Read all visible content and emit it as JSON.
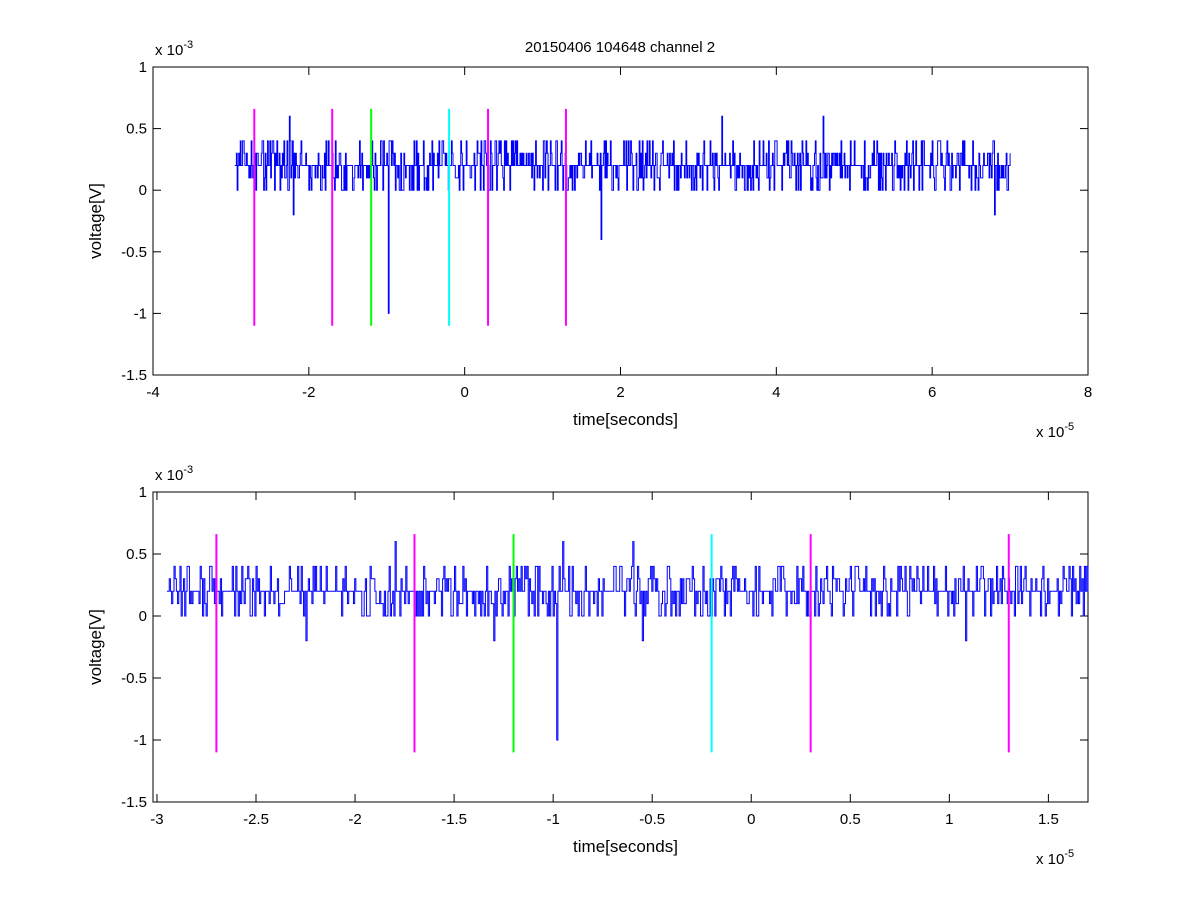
{
  "title": "20150406 104648 channel 2",
  "chart_data": [
    {
      "type": "line",
      "title": "20150406 104648 channel 2",
      "xlabel": "time[seconds]",
      "ylabel": "voltage[V]",
      "x_exponent_label": "x 10",
      "x_exponent": "-5",
      "y_exponent_label": "x 10",
      "y_exponent": "-3",
      "xlim": [
        -4e-05,
        8e-05
      ],
      "ylim": [
        -0.0015,
        0.001
      ],
      "xticks": [
        -4e-05,
        -2e-05,
        0,
        2e-05,
        4e-05,
        6e-05,
        8e-05
      ],
      "xtick_labels": [
        "-4",
        "-2",
        "0",
        "2",
        "4",
        "6",
        "8"
      ],
      "yticks": [
        -0.0015,
        -0.001,
        -0.0005,
        0,
        0.0005,
        0.001
      ],
      "ytick_labels": [
        "-1.5",
        "-1",
        "-0.5",
        "0",
        "0.5",
        "1"
      ],
      "grid": false,
      "signal": {
        "color": "#0000ff",
        "x_start": -2.95e-05,
        "x_end": 7e-05,
        "baseline": 0.0002,
        "levels": [
          0,
          0.0001,
          0.0002,
          0.0003,
          0.0004
        ],
        "spikes": [
          {
            "x": -9.8e-06,
            "y": -0.001
          },
          {
            "x": 1.75e-05,
            "y": -0.0004
          },
          {
            "x": -2.2e-05,
            "y": -0.0002
          },
          {
            "x": 6.8e-05,
            "y": -0.0002
          },
          {
            "x": 3.3e-05,
            "y": 0.0006
          },
          {
            "x": -2.25e-05,
            "y": 0.0006
          },
          {
            "x": 4.6e-05,
            "y": 0.0006
          }
        ]
      },
      "markers": [
        {
          "x": -2.7e-05,
          "color": "#ff00ff",
          "y_min": -0.0011,
          "y_max": 0.00066
        },
        {
          "x": -1.7e-05,
          "color": "#ff00ff",
          "y_min": -0.0011,
          "y_max": 0.00066
        },
        {
          "x": -1.2e-05,
          "color": "#00ff00",
          "y_min": -0.0011,
          "y_max": 0.00066
        },
        {
          "x": -2e-06,
          "color": "#00ffff",
          "y_min": -0.0011,
          "y_max": 0.00066
        },
        {
          "x": 3e-06,
          "color": "#ff00ff",
          "y_min": -0.0011,
          "y_max": 0.00066
        },
        {
          "x": 1.3e-05,
          "color": "#ff00ff",
          "y_min": -0.0011,
          "y_max": 0.00066
        }
      ]
    },
    {
      "type": "line",
      "title": "",
      "xlabel": "time[seconds]",
      "ylabel": "voltage[V]",
      "x_exponent_label": "x 10",
      "x_exponent": "-5",
      "y_exponent_label": "x 10",
      "y_exponent": "-3",
      "xlim": [
        -3.02e-05,
        1.7e-05
      ],
      "ylim": [
        -0.0015,
        0.001
      ],
      "xticks": [
        -3e-05,
        -2.5e-05,
        -2e-05,
        -1.5e-05,
        -1e-05,
        -5e-06,
        0,
        5e-06,
        1e-05,
        1.5e-05
      ],
      "xtick_labels": [
        "-3",
        "-2.5",
        "-2",
        "-1.5",
        "-1",
        "-0.5",
        "0",
        "0.5",
        "1",
        "1.5"
      ],
      "yticks": [
        -0.0015,
        -0.001,
        -0.0005,
        0,
        0.0005,
        0.001
      ],
      "ytick_labels": [
        "-1.5",
        "-1",
        "-0.5",
        "0",
        "0.5",
        "1"
      ],
      "grid": false,
      "signal": {
        "color": "#0000ff",
        "x_start": -2.95e-05,
        "x_end": 1.7e-05,
        "baseline": 0.0002,
        "levels": [
          0,
          0.0001,
          0.0002,
          0.0003,
          0.0004
        ],
        "spikes": [
          {
            "x": -9.8e-06,
            "y": -0.001
          },
          {
            "x": -2.25e-05,
            "y": 0.0006
          },
          {
            "x": -2.25e-05,
            "y": -0.0002
          },
          {
            "x": -1.8e-05,
            "y": 0.0006
          },
          {
            "x": -9.5e-06,
            "y": 0.0006
          },
          {
            "x": -6e-06,
            "y": 0.0006
          },
          {
            "x": 1.08e-05,
            "y": -0.0002
          },
          {
            "x": -1.3e-05,
            "y": -0.0002
          },
          {
            "x": -5.5e-06,
            "y": -0.0002
          }
        ]
      },
      "markers": [
        {
          "x": -2.7e-05,
          "color": "#ff00ff",
          "y_min": -0.0011,
          "y_max": 0.00066
        },
        {
          "x": -1.7e-05,
          "color": "#ff00ff",
          "y_min": -0.0011,
          "y_max": 0.00066
        },
        {
          "x": -1.2e-05,
          "color": "#00ff00",
          "y_min": -0.0011,
          "y_max": 0.00066
        },
        {
          "x": -2e-06,
          "color": "#00ffff",
          "y_min": -0.0011,
          "y_max": 0.00066
        },
        {
          "x": 3e-06,
          "color": "#ff00ff",
          "y_min": -0.0011,
          "y_max": 0.00066
        },
        {
          "x": 1.3e-05,
          "color": "#ff00ff",
          "y_min": -0.0011,
          "y_max": 0.00066
        }
      ]
    }
  ]
}
